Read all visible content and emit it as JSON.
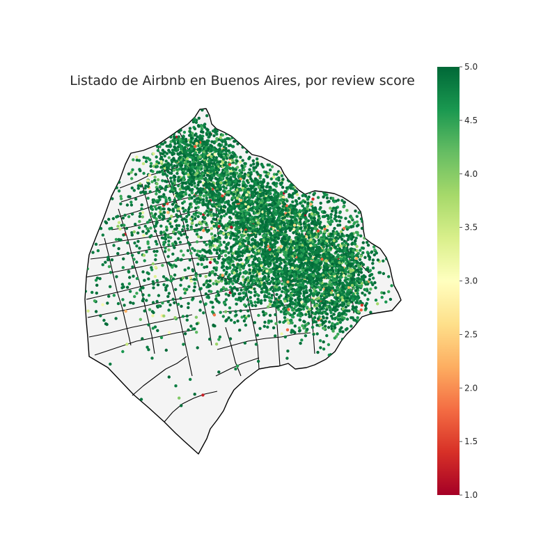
{
  "title": "Listado de Airbnb en Buenos Aires, por review score",
  "colorbar": {
    "colormap": "RdYlGn",
    "min": 1.0,
    "max": 5.0,
    "ticks": [
      1.0,
      1.5,
      2.0,
      2.5,
      3.0,
      3.5,
      4.0,
      4.5,
      5.0
    ],
    "tick_labels": [
      "1.0",
      "1.5",
      "2.0",
      "2.5",
      "3.0",
      "3.5",
      "4.0",
      "4.5",
      "5.0"
    ],
    "stops": [
      {
        "value": 1.0,
        "color": "#a50026"
      },
      {
        "value": 1.4,
        "color": "#d73027"
      },
      {
        "value": 1.8,
        "color": "#f46d43"
      },
      {
        "value": 2.2,
        "color": "#fdae61"
      },
      {
        "value": 2.6,
        "color": "#fee08b"
      },
      {
        "value": 3.0,
        "color": "#ffffbf"
      },
      {
        "value": 3.4,
        "color": "#d9ef8b"
      },
      {
        "value": 3.8,
        "color": "#a6d96a"
      },
      {
        "value": 4.2,
        "color": "#66bd63"
      },
      {
        "value": 4.6,
        "color": "#1a9850"
      },
      {
        "value": 5.0,
        "color": "#006837"
      }
    ]
  },
  "map": {
    "region": "Buenos Aires",
    "point_variable": "review score",
    "score_distribution": "mostly 4.5-5.0, few low scores",
    "background_color": "#f4f4f4",
    "boundary_color": "#000000"
  }
}
